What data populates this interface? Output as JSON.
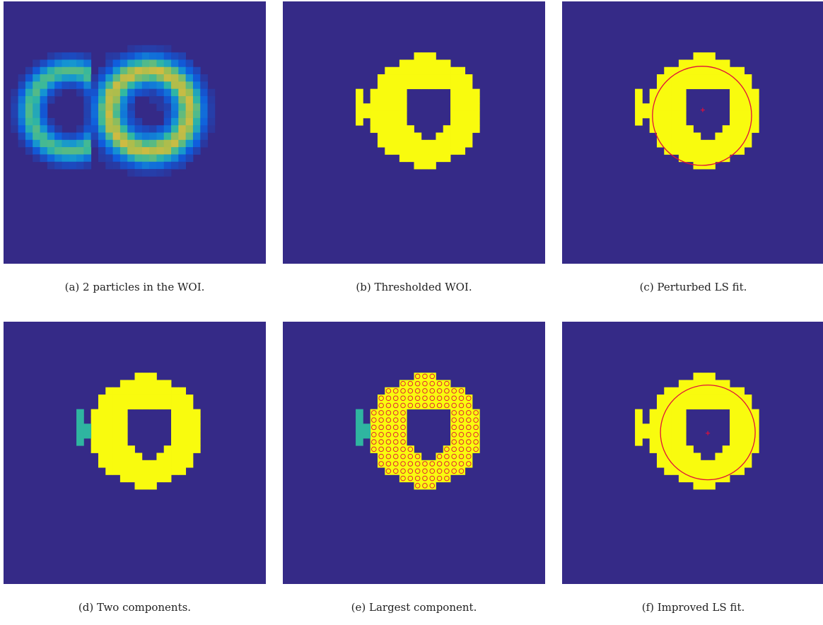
{
  "colors": {
    "background": "#352a87",
    "foreground": "#f9fb0e",
    "second_component": "#2fb5a0",
    "fit": "#e0103a",
    "largest_marker": "#e0103a"
  },
  "panels": [
    {
      "id": "a",
      "caption": "(a) 2 particles in the WOI.",
      "mode": "raw"
    },
    {
      "id": "b",
      "caption": "(b) Thresholded WOI.",
      "mode": "threshold"
    },
    {
      "id": "c",
      "caption": "(c) Perturbed LS fit.",
      "mode": "perturbed-fit"
    },
    {
      "id": "d",
      "caption": "(d) Two components.",
      "mode": "components"
    },
    {
      "id": "e",
      "caption": "(e) Largest component.",
      "mode": "largest"
    },
    {
      "id": "f",
      "caption": "(f) Improved LS fit.",
      "mode": "improved-fit"
    }
  ]
}
